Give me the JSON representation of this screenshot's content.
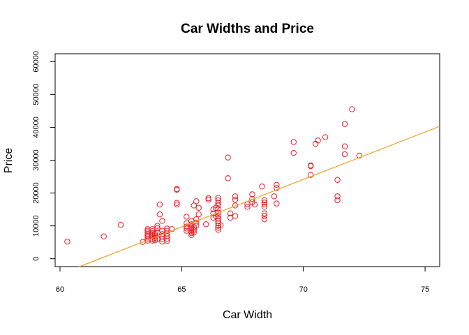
{
  "chart_data": {
    "type": "scatter",
    "title": "Car Widths and Price",
    "xlabel": "Car Width",
    "ylabel": "Price",
    "xlim": [
      59.8,
      75.6
    ],
    "ylim": [
      -2400,
      62400
    ],
    "x_ticks": [
      60,
      65,
      70,
      75
    ],
    "y_ticks": [
      0,
      10000,
      20000,
      30000,
      40000,
      50000,
      60000
    ],
    "grid": false,
    "legend": "none",
    "point_color": "#ee1c25",
    "line_color": "#f0a020",
    "series": [
      {
        "points": [
          [
            60.3,
            5200
          ],
          [
            61.8,
            6800
          ],
          [
            62.5,
            10300
          ],
          [
            63.4,
            5100
          ],
          [
            63.6,
            5500
          ],
          [
            63.6,
            6000
          ],
          [
            63.6,
            6500
          ],
          [
            63.6,
            7000
          ],
          [
            63.6,
            7500
          ],
          [
            63.6,
            8000
          ],
          [
            63.6,
            8500
          ],
          [
            63.6,
            9000
          ],
          [
            63.8,
            5500
          ],
          [
            63.8,
            6000
          ],
          [
            63.8,
            6700
          ],
          [
            63.8,
            7200
          ],
          [
            63.8,
            7800
          ],
          [
            63.8,
            8400
          ],
          [
            63.8,
            9000
          ],
          [
            63.9,
            5600
          ],
          [
            63.9,
            6300
          ],
          [
            63.9,
            7100
          ],
          [
            63.9,
            7600
          ],
          [
            64.0,
            6000
          ],
          [
            64.0,
            8000
          ],
          [
            64.0,
            9300
          ],
          [
            64.0,
            10000
          ],
          [
            64.1,
            13500
          ],
          [
            64.1,
            16500
          ],
          [
            64.2,
            5200
          ],
          [
            64.2,
            6000
          ],
          [
            64.2,
            6800
          ],
          [
            64.2,
            7500
          ],
          [
            64.2,
            8500
          ],
          [
            64.2,
            11500
          ],
          [
            64.4,
            5400
          ],
          [
            64.4,
            6100
          ],
          [
            64.4,
            6900
          ],
          [
            64.4,
            7700
          ],
          [
            64.4,
            8500
          ],
          [
            64.4,
            9200
          ],
          [
            64.6,
            9000
          ],
          [
            64.8,
            16500
          ],
          [
            64.8,
            17000
          ],
          [
            64.8,
            21000
          ],
          [
            64.8,
            21200
          ],
          [
            65.2,
            8500
          ],
          [
            65.2,
            9200
          ],
          [
            65.2,
            9800
          ],
          [
            65.2,
            10800
          ],
          [
            65.2,
            12800
          ],
          [
            65.4,
            7200
          ],
          [
            65.4,
            7800
          ],
          [
            65.4,
            8200
          ],
          [
            65.4,
            8800
          ],
          [
            65.4,
            9300
          ],
          [
            65.4,
            9800
          ],
          [
            65.4,
            10500
          ],
          [
            65.4,
            11500
          ],
          [
            65.5,
            8000
          ],
          [
            65.5,
            8800
          ],
          [
            65.5,
            9600
          ],
          [
            65.5,
            16200
          ],
          [
            65.6,
            10000
          ],
          [
            65.6,
            11000
          ],
          [
            65.6,
            12000
          ],
          [
            65.6,
            17500
          ],
          [
            65.7,
            13500
          ],
          [
            65.7,
            15500
          ],
          [
            66.0,
            10500
          ],
          [
            66.1,
            18000
          ],
          [
            66.1,
            18400
          ],
          [
            66.3,
            12500
          ],
          [
            66.3,
            13800
          ],
          [
            66.3,
            15000
          ],
          [
            66.4,
            13000
          ],
          [
            66.4,
            15500
          ],
          [
            66.5,
            8800
          ],
          [
            66.5,
            9400
          ],
          [
            66.5,
            10000
          ],
          [
            66.5,
            10800
          ],
          [
            66.5,
            11500
          ],
          [
            66.5,
            12200
          ],
          [
            66.5,
            13000
          ],
          [
            66.5,
            14000
          ],
          [
            66.5,
            15200
          ],
          [
            66.5,
            16200
          ],
          [
            66.5,
            17000
          ],
          [
            66.5,
            17800
          ],
          [
            66.5,
            18500
          ],
          [
            66.6,
            10200
          ],
          [
            66.9,
            24500
          ],
          [
            66.9,
            30800
          ],
          [
            67.0,
            12500
          ],
          [
            67.0,
            13800
          ],
          [
            67.2,
            13000
          ],
          [
            67.2,
            16200
          ],
          [
            67.2,
            18000
          ],
          [
            67.2,
            19000
          ],
          [
            67.7,
            15800
          ],
          [
            67.7,
            16600
          ],
          [
            67.9,
            17200
          ],
          [
            67.9,
            18200
          ],
          [
            67.9,
            19600
          ],
          [
            68.0,
            16500
          ],
          [
            68.3,
            22000
          ],
          [
            68.4,
            12000
          ],
          [
            68.4,
            13000
          ],
          [
            68.4,
            13800
          ],
          [
            68.4,
            15800
          ],
          [
            68.4,
            16500
          ],
          [
            68.4,
            17100
          ],
          [
            68.4,
            17800
          ],
          [
            68.8,
            19000
          ],
          [
            68.9,
            16800
          ],
          [
            68.9,
            21500
          ],
          [
            68.9,
            22500
          ],
          [
            69.6,
            32200
          ],
          [
            69.6,
            35500
          ],
          [
            70.3,
            25500
          ],
          [
            70.3,
            28200
          ],
          [
            70.3,
            28400
          ],
          [
            70.5,
            35000
          ],
          [
            70.6,
            36000
          ],
          [
            70.9,
            37000
          ],
          [
            71.4,
            17800
          ],
          [
            71.4,
            19000
          ],
          [
            71.4,
            24000
          ],
          [
            71.7,
            31800
          ],
          [
            71.7,
            34200
          ],
          [
            71.7,
            41000
          ],
          [
            72.0,
            45500
          ],
          [
            72.3,
            31400
          ]
        ]
      }
    ],
    "fit_line": {
      "x": [
        59.8,
        75.6
      ],
      "y": [
        -5300,
        40300
      ]
    }
  }
}
